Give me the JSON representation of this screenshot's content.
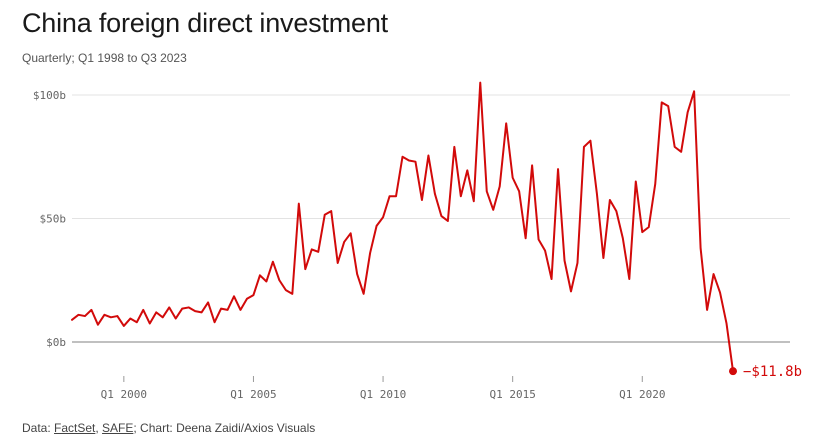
{
  "title": "China foreign direct investment",
  "subtitle": "Quarterly; Q1 1998 to Q3 2023",
  "footer": {
    "prefix": "Data: ",
    "source1": "FactSet",
    "sep": ", ",
    "source2": "SAFE",
    "suffix": "; Chart: Deena Zaidi/Axios Visuals"
  },
  "chart_data": {
    "type": "line",
    "title": "China foreign direct investment",
    "subtitle": "Quarterly; Q1 1998 to Q3 2023",
    "xlabel": "",
    "ylabel": "",
    "ylim": [
      -15,
      108
    ],
    "grid": "horizontal",
    "color": "#d20a0a",
    "y_ticks": [
      {
        "value": 100,
        "label": "$100b"
      },
      {
        "value": 50,
        "label": "$50b"
      },
      {
        "value": 0,
        "label": "$0b"
      }
    ],
    "x_ticks": [
      {
        "index": 8,
        "label": "Q1 2000"
      },
      {
        "index": 28,
        "label": "Q1 2005"
      },
      {
        "index": 48,
        "label": "Q1 2010"
      },
      {
        "index": 68,
        "label": "Q1 2015"
      },
      {
        "index": 88,
        "label": "Q1 2020"
      }
    ],
    "x_start": "Q1 1998",
    "x_end": "Q3 2023",
    "series": [
      {
        "values": [
          9,
          11,
          10.5,
          13,
          7,
          11,
          10,
          10.5,
          6.5,
          9.5,
          8,
          13,
          7.5,
          12,
          10,
          14,
          9.5,
          13.5,
          14,
          12.5,
          12,
          16,
          8,
          13.5,
          13,
          18.5,
          13,
          17.5,
          19,
          27,
          24.5,
          32.5,
          25,
          21,
          19.5,
          56,
          29.5,
          37.5,
          36.5,
          51.5,
          53,
          32,
          40.5,
          44,
          27.5,
          19.5,
          36,
          47,
          50.5,
          59,
          59,
          75,
          73.5,
          73,
          57.5,
          75.5,
          60,
          51,
          49,
          79,
          59,
          69.5,
          57,
          105,
          61,
          53.5,
          63,
          88.5,
          66.5,
          61,
          42,
          71.5,
          41.5,
          37,
          25.5,
          70,
          33,
          20.5,
          32,
          79,
          81.5,
          60,
          34,
          57.5,
          53,
          42,
          25.5,
          65,
          44.5,
          46.5,
          64,
          97,
          95.5,
          79,
          77,
          93,
          101.5,
          38,
          13,
          27.5,
          20,
          7.5,
          -11.8
        ]
      }
    ],
    "annotation": {
      "label": "−$11.8b",
      "value": -11.8,
      "period": "Q3 2023"
    }
  }
}
